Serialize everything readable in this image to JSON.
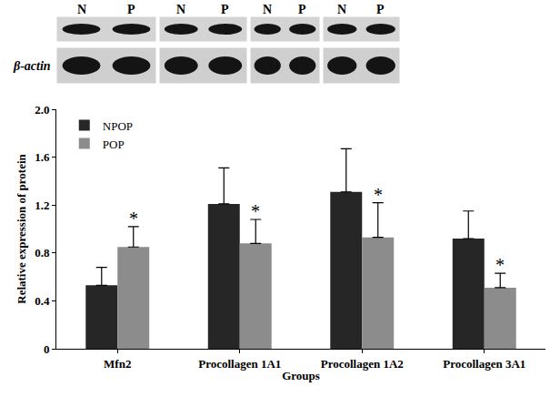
{
  "chart_data": {
    "type": "bar",
    "categories": [
      "Mfn2",
      "Procollagen 1A1",
      "Procollagen 1A2",
      "Procollagen 3A1"
    ],
    "series": [
      {
        "name": "NPOP",
        "color": "#262626",
        "values": [
          0.53,
          1.21,
          1.31,
          0.92
        ],
        "errors": [
          0.15,
          0.3,
          0.36,
          0.23
        ]
      },
      {
        "name": "POP",
        "color": "#8c8c8c",
        "values": [
          0.85,
          0.88,
          0.93,
          0.51
        ],
        "errors": [
          0.17,
          0.2,
          0.29,
          0.12
        ]
      }
    ],
    "x_label": "Groups",
    "y_label": "Relative expression of protein",
    "ylim": [
      0,
      2
    ],
    "yticks": [
      0,
      0.4,
      0.8,
      1.2,
      1.6,
      {
        "value": 2,
        "label": "2.0"
      }
    ],
    "grid": false,
    "legend": "upper left",
    "annotations": [
      {
        "category": "Mfn2",
        "series": "POP",
        "text": "*"
      },
      {
        "category": "Procollagen 1A1",
        "series": "POP",
        "text": "*"
      },
      {
        "category": "Procollagen 1A2",
        "series": "POP",
        "text": "*"
      },
      {
        "category": "Procollagen 3A1",
        "series": "POP",
        "text": "*"
      }
    ]
  },
  "blot": {
    "panels": [
      {
        "lanes": [
          "N",
          "P"
        ]
      },
      {
        "lanes": [
          "N",
          "P"
        ]
      },
      {
        "lanes": [
          "N",
          "P"
        ]
      },
      {
        "lanes": [
          "N",
          "P"
        ]
      }
    ],
    "loading_control": "β-actin"
  }
}
